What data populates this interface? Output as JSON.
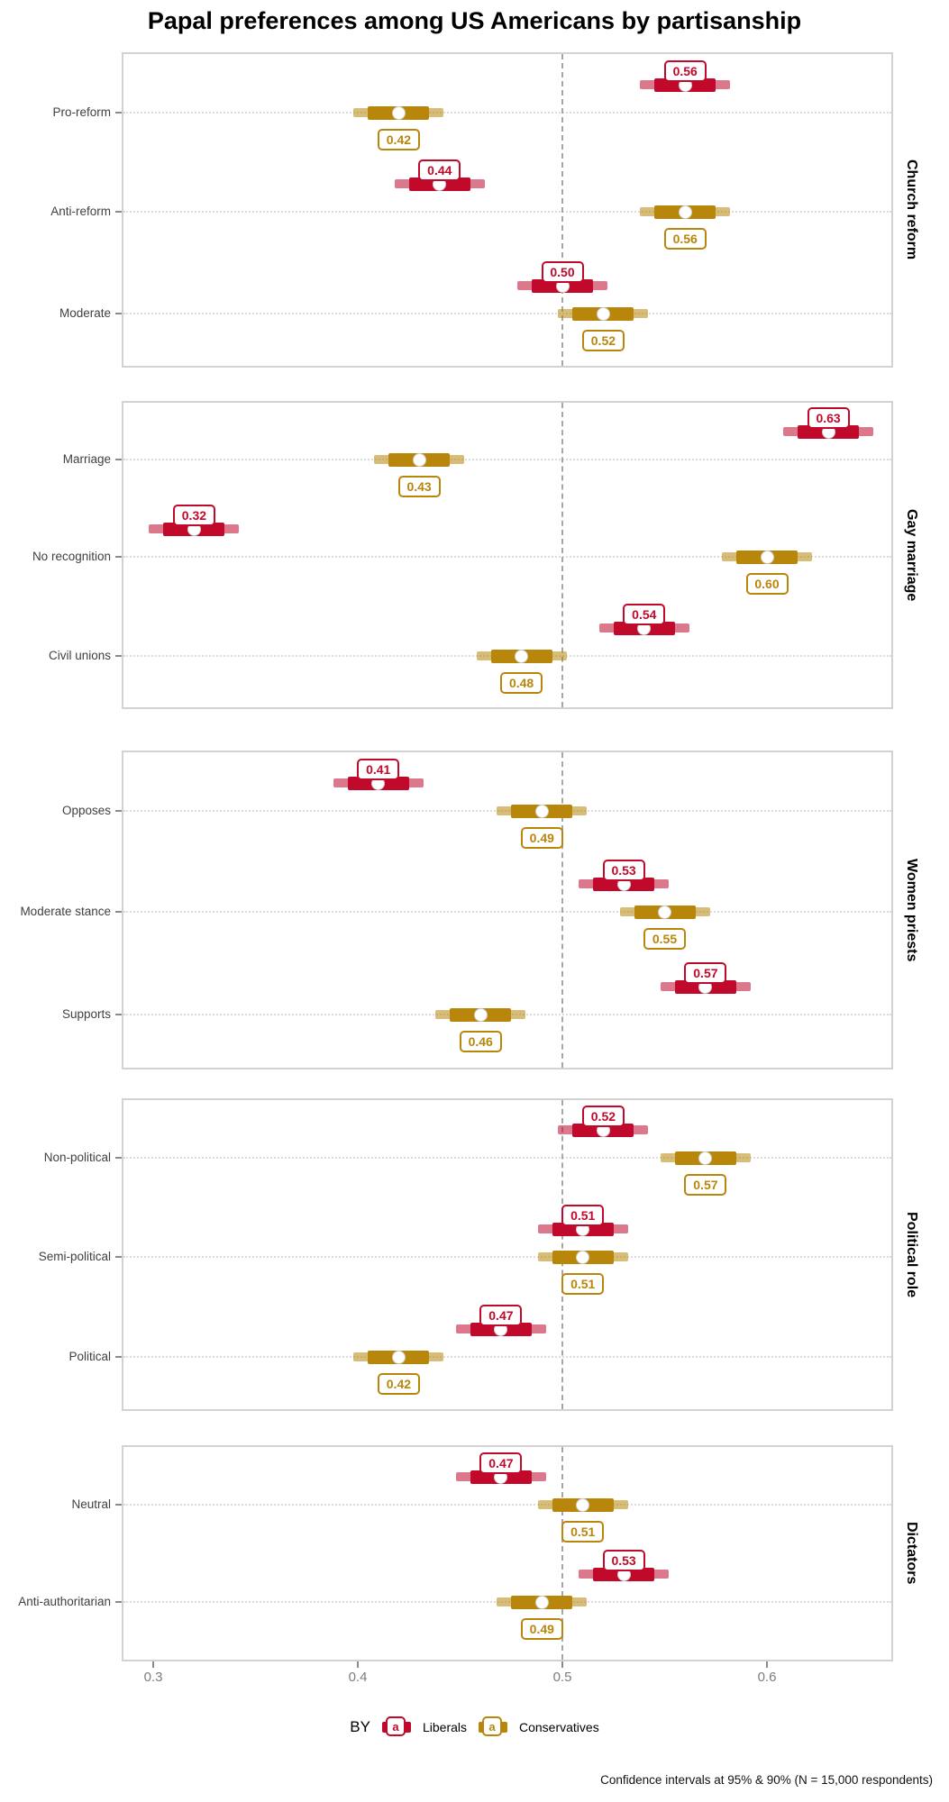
{
  "chart_data": {
    "type": "interval-dotplot",
    "title": "Papal preferences among US Americans by partisanship",
    "caption": "Confidence intervals at 95% & 90% (N = 15,000 respondents)",
    "legend": {
      "prefix": "BY",
      "key_glyph_letter": "a",
      "series": [
        {
          "name": "Liberals",
          "color": "#C0092B"
        },
        {
          "name": "Conservatives",
          "color": "#B8860B"
        }
      ]
    },
    "x_axis": {
      "tick_labels": [
        "0.3",
        "0.4",
        "0.5",
        "0.6"
      ],
      "tick_values": [
        0.3,
        0.4,
        0.5,
        0.6
      ],
      "range": [
        0.285,
        0.662
      ],
      "reference_line": 0.5,
      "grid": "dotted-horizontal-at-categories"
    },
    "intervals": {
      "outer": "95%",
      "inner": "90%"
    },
    "facets": [
      {
        "label": "Church reform",
        "categories": [
          "Pro-reform",
          "Anti-reform",
          "Moderate"
        ],
        "series": [
          {
            "name": "Liberals",
            "values": [
              0.56,
              0.44,
              0.5
            ]
          },
          {
            "name": "Conservatives",
            "values": [
              0.42,
              0.56,
              0.52
            ]
          }
        ]
      },
      {
        "label": "Gay marriage",
        "categories": [
          "Marriage",
          "No recognition",
          "Civil unions"
        ],
        "series": [
          {
            "name": "Liberals",
            "values": [
              0.63,
              0.32,
              0.54
            ]
          },
          {
            "name": "Conservatives",
            "values": [
              0.43,
              0.6,
              0.48
            ]
          }
        ]
      },
      {
        "label": "Women priests",
        "categories": [
          "Opposes",
          "Moderate stance",
          "Supports"
        ],
        "series": [
          {
            "name": "Liberals",
            "values": [
              0.41,
              0.53,
              0.57
            ]
          },
          {
            "name": "Conservatives",
            "values": [
              0.49,
              0.55,
              0.46
            ]
          }
        ]
      },
      {
        "label": "Political role",
        "categories": [
          "Non-political",
          "Semi-political",
          "Political"
        ],
        "series": [
          {
            "name": "Liberals",
            "values": [
              0.52,
              0.51,
              0.47
            ]
          },
          {
            "name": "Conservatives",
            "values": [
              0.57,
              0.51,
              0.42
            ]
          }
        ]
      },
      {
        "label": "Dictators",
        "categories": [
          "Neutral",
          "Anti-authoritarian"
        ],
        "series": [
          {
            "name": "Liberals",
            "values": [
              0.47,
              0.53
            ]
          },
          {
            "name": "Conservatives",
            "values": [
              0.51,
              0.49
            ]
          }
        ]
      }
    ]
  }
}
